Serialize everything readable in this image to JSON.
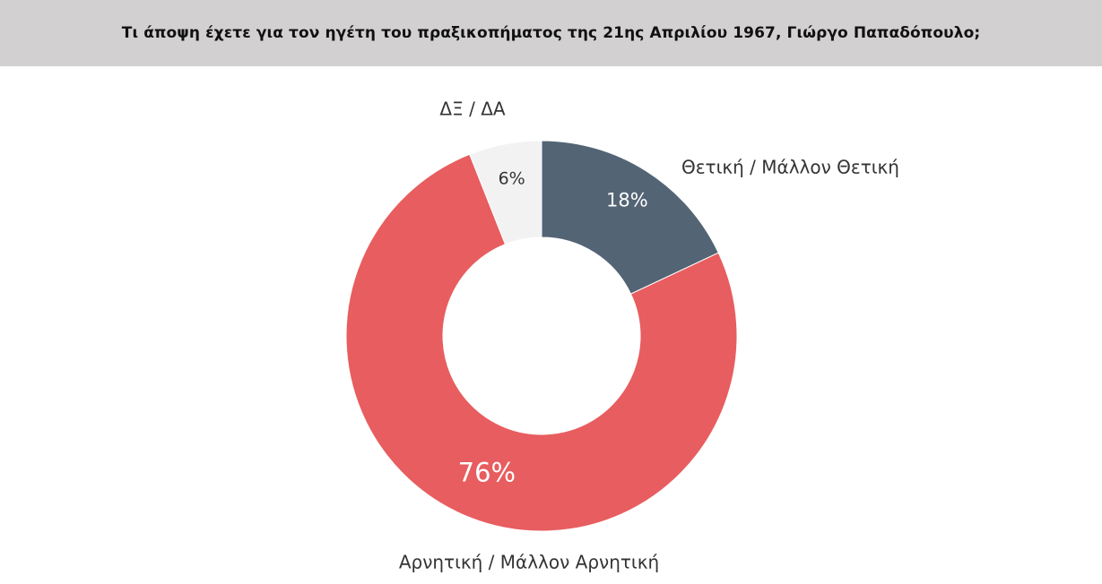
{
  "header": {
    "question": "Τι άποψη έχετε για τον ηγέτη του πραξικοπήματος της 21ης Απριλίου 1967, Γιώργο Παπαδόπουλο;"
  },
  "chart_data": {
    "type": "pie",
    "donut": true,
    "slices": [
      {
        "label": "Θετική / Μάλλον Θετική",
        "value": 18,
        "value_label": "18%",
        "color": "#536475"
      },
      {
        "label": "Αρνητική / Μάλλον Αρνητική",
        "value": 76,
        "value_label": "76%",
        "color": "#e85d5f"
      },
      {
        "label": "ΔΞ / ΔΑ",
        "value": 6,
        "value_label": "6%",
        "color": "#f2f2f2"
      }
    ],
    "start_angle": "12 o'clock",
    "direction": "clockwise",
    "legend": "none"
  }
}
